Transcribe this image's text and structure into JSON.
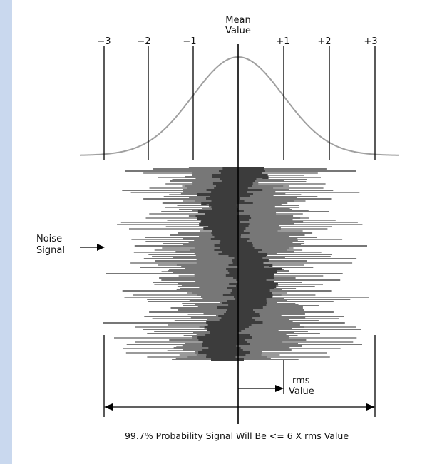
{
  "sigma_labels": [
    "−3",
    "−2",
    "−1",
    "+1",
    "+2",
    "+3"
  ],
  "mean_label": {
    "line1": "Mean",
    "line2": "Value"
  },
  "noise_label": {
    "line1": "Noise",
    "line2": "Signal"
  },
  "rms_label": {
    "line1": "rms",
    "line2": "Value"
  },
  "caption": "99.7% Probability Signal Will Be <= 6 X rms Value",
  "colors": {
    "sidebar": "#c9d8ee",
    "curve": "#a0a0a0",
    "noise_dark": "#3c3c3c",
    "noise_mid": "#777777",
    "noise_light": "#9a9a9a",
    "lines": "#000000"
  }
}
